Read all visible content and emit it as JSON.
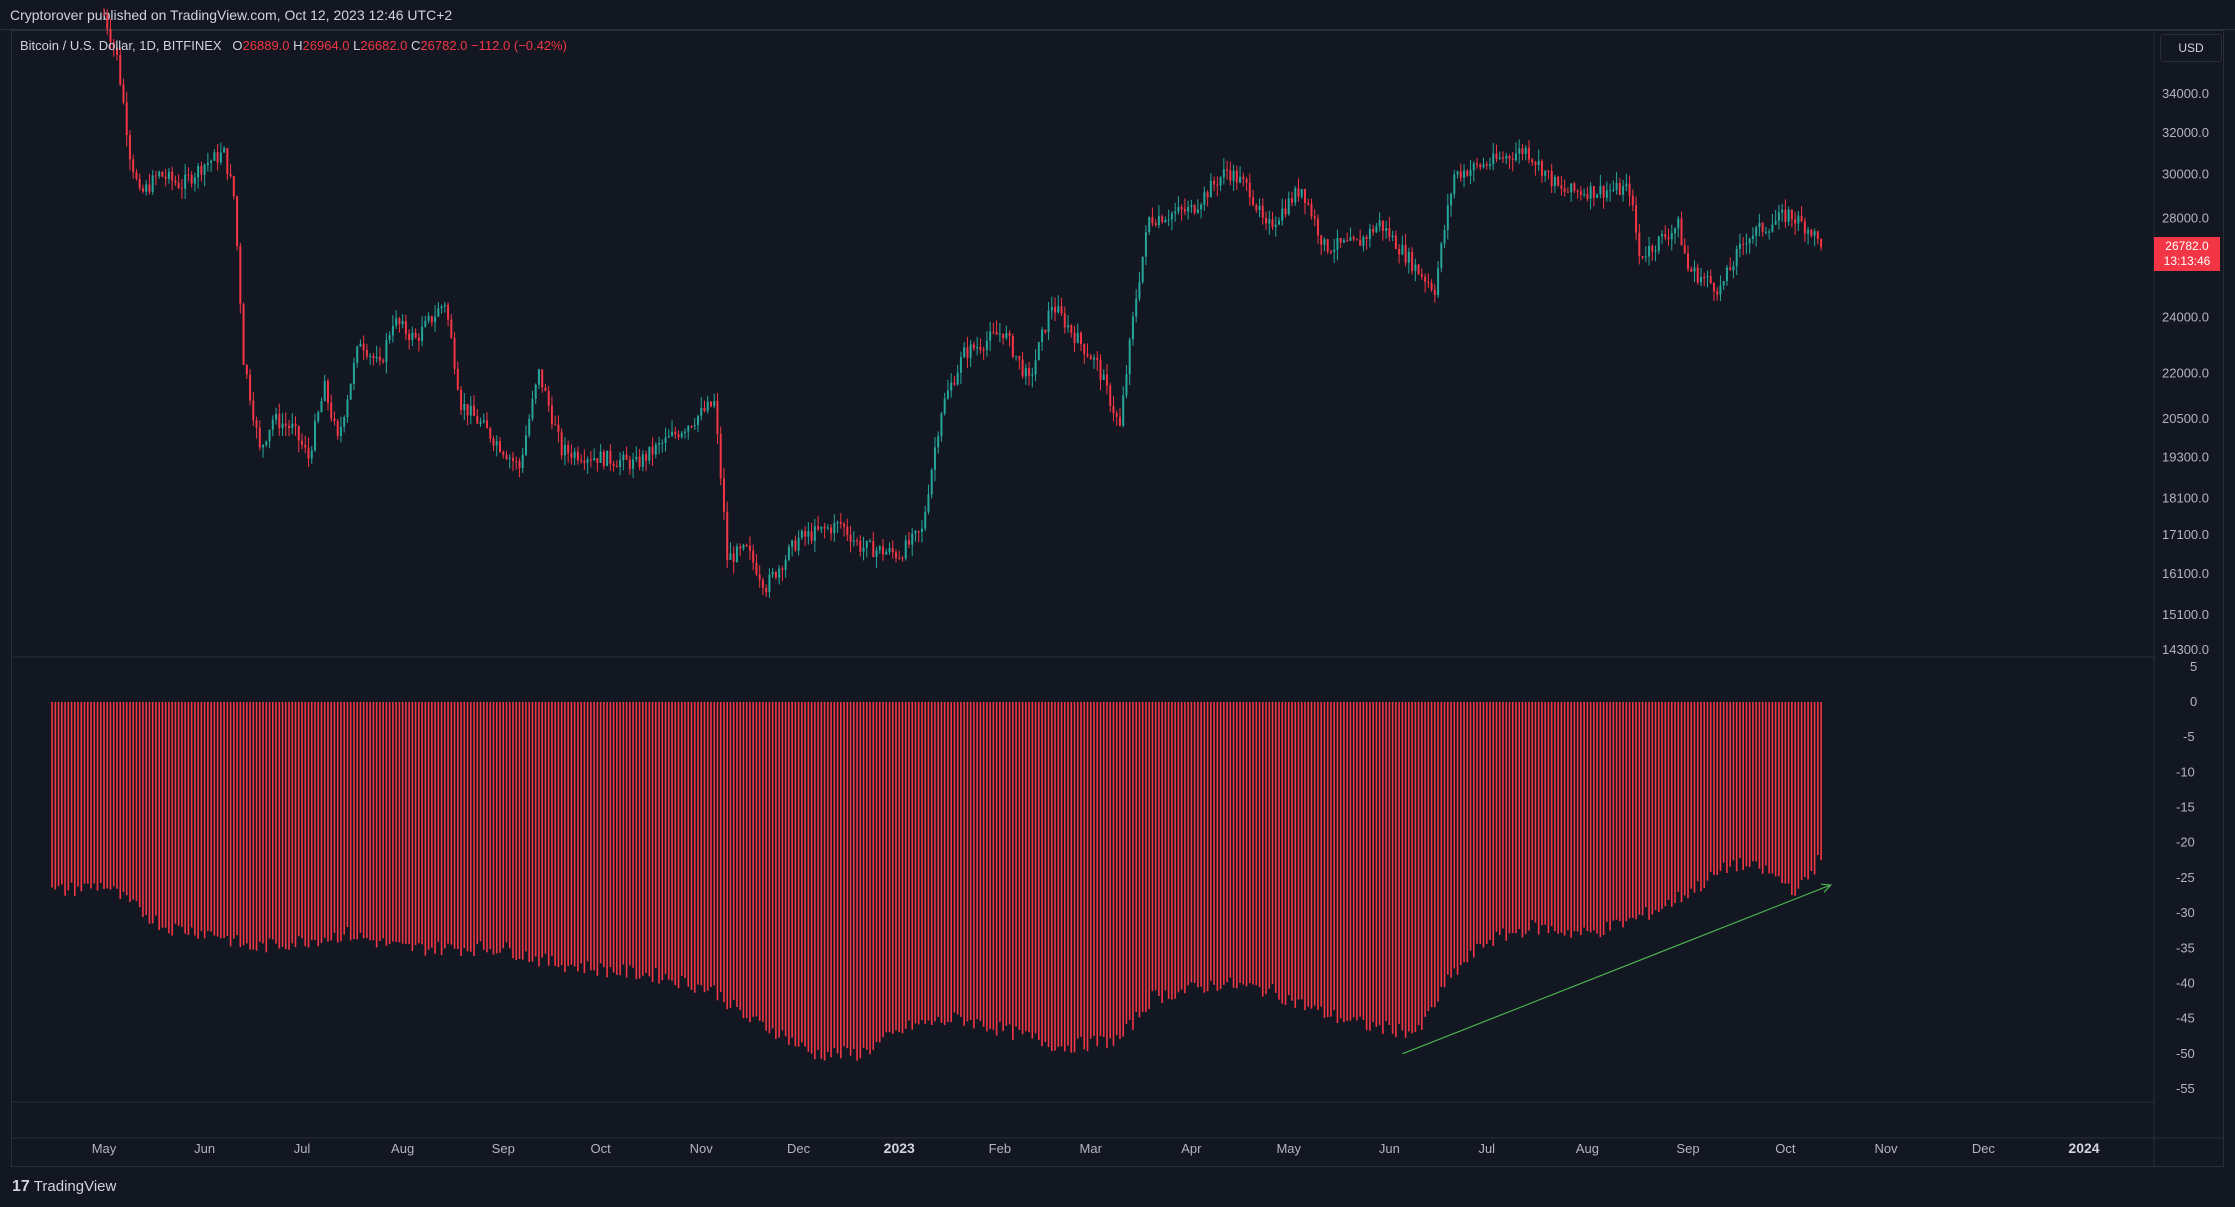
{
  "header": {
    "publisher": "Cryptorover published on TradingView.com, Oct 12, 2023 12:46 UTC+2"
  },
  "legend": {
    "symbol": "Bitcoin / U.S. Dollar, 1D, BITFINEX",
    "open_label": "O",
    "open": "26889.0",
    "high_label": "H",
    "high": "26964.0",
    "low_label": "L",
    "low": "26682.0",
    "close_label": "C",
    "close": "26782.0",
    "change": "−112.0 (−0.42%)"
  },
  "currency": "USD",
  "last_price": {
    "price": "26782.0",
    "countdown": "13:13:46"
  },
  "footer": {
    "brand": "TradingView"
  },
  "colors": {
    "background": "#131722",
    "up": "#26a69a",
    "down": "#f23645",
    "histogram": "#f23645",
    "trendline": "#4caf50",
    "grid": "#2a2e39"
  },
  "chart_data": [
    {
      "type": "candlestick",
      "scale": "log",
      "price_ticks": [
        34000,
        32000,
        30000,
        28000,
        24000,
        22000,
        20500,
        19300,
        18100,
        17100,
        16100,
        15100,
        14300
      ],
      "ylim": [
        14300,
        34000
      ],
      "x_axis_labels": [
        "May",
        "Jun",
        "Jul",
        "Aug",
        "Sep",
        "Oct",
        "Nov",
        "Dec",
        "2023",
        "Feb",
        "Mar",
        "Apr",
        "May",
        "Jun",
        "Jul",
        "Aug",
        "Sep",
        "Oct",
        "Nov",
        "Dec",
        "2024"
      ],
      "bold_labels": [
        "2023",
        "2024"
      ],
      "close_path": [
        {
          "x": "2022-05-01",
          "y": 38500
        },
        {
          "x": "2022-05-05",
          "y": 36000
        },
        {
          "x": "2022-05-09",
          "y": 31000
        },
        {
          "x": "2022-05-12",
          "y": 29000
        },
        {
          "x": "2022-05-18",
          "y": 30000
        },
        {
          "x": "2022-05-25",
          "y": 29500
        },
        {
          "x": "2022-06-01",
          "y": 30500
        },
        {
          "x": "2022-06-07",
          "y": 31000
        },
        {
          "x": "2022-06-10",
          "y": 29000
        },
        {
          "x": "2022-06-13",
          "y": 22500
        },
        {
          "x": "2022-06-18",
          "y": 19500
        },
        {
          "x": "2022-06-22",
          "y": 20500
        },
        {
          "x": "2022-06-28",
          "y": 20200
        },
        {
          "x": "2022-07-03",
          "y": 19300
        },
        {
          "x": "2022-07-08",
          "y": 21500
        },
        {
          "x": "2022-07-12",
          "y": 19800
        },
        {
          "x": "2022-07-19",
          "y": 23200
        },
        {
          "x": "2022-07-25",
          "y": 22200
        },
        {
          "x": "2022-07-29",
          "y": 23900
        },
        {
          "x": "2022-08-05",
          "y": 23200
        },
        {
          "x": "2022-08-14",
          "y": 24600
        },
        {
          "x": "2022-08-19",
          "y": 21000
        },
        {
          "x": "2022-08-28",
          "y": 20000
        },
        {
          "x": "2022-09-06",
          "y": 19000
        },
        {
          "x": "2022-09-12",
          "y": 22000
        },
        {
          "x": "2022-09-19",
          "y": 19500
        },
        {
          "x": "2022-10-01",
          "y": 19300
        },
        {
          "x": "2022-10-12",
          "y": 19100
        },
        {
          "x": "2022-10-25",
          "y": 20100
        },
        {
          "x": "2022-11-05",
          "y": 21000
        },
        {
          "x": "2022-11-09",
          "y": 16500
        },
        {
          "x": "2022-11-15",
          "y": 16700
        },
        {
          "x": "2022-11-21",
          "y": 15800
        },
        {
          "x": "2022-12-01",
          "y": 17000
        },
        {
          "x": "2022-12-14",
          "y": 17400
        },
        {
          "x": "2022-12-20",
          "y": 16800
        },
        {
          "x": "2023-01-01",
          "y": 16600
        },
        {
          "x": "2023-01-08",
          "y": 17200
        },
        {
          "x": "2023-01-14",
          "y": 20800
        },
        {
          "x": "2023-01-21",
          "y": 22700
        },
        {
          "x": "2023-02-02",
          "y": 23500
        },
        {
          "x": "2023-02-10",
          "y": 21700
        },
        {
          "x": "2023-02-17",
          "y": 24500
        },
        {
          "x": "2023-02-25",
          "y": 23200
        },
        {
          "x": "2023-03-03",
          "y": 22300
        },
        {
          "x": "2023-03-10",
          "y": 20200
        },
        {
          "x": "2023-03-15",
          "y": 24800
        },
        {
          "x": "2023-03-19",
          "y": 28000
        },
        {
          "x": "2023-04-01",
          "y": 28400
        },
        {
          "x": "2023-04-12",
          "y": 30200
        },
        {
          "x": "2023-04-19",
          "y": 29300
        },
        {
          "x": "2023-04-24",
          "y": 27500
        },
        {
          "x": "2023-05-05",
          "y": 29400
        },
        {
          "x": "2023-05-12",
          "y": 26800
        },
        {
          "x": "2023-05-22",
          "y": 26900
        },
        {
          "x": "2023-05-29",
          "y": 27800
        },
        {
          "x": "2023-06-10",
          "y": 25800
        },
        {
          "x": "2023-06-15",
          "y": 25100
        },
        {
          "x": "2023-06-21",
          "y": 30000
        },
        {
          "x": "2023-07-01",
          "y": 30500
        },
        {
          "x": "2023-07-13",
          "y": 31200
        },
        {
          "x": "2023-07-24",
          "y": 29200
        },
        {
          "x": "2023-08-14",
          "y": 29300
        },
        {
          "x": "2023-08-17",
          "y": 26400
        },
        {
          "x": "2023-08-29",
          "y": 27700
        },
        {
          "x": "2023-09-01",
          "y": 25900
        },
        {
          "x": "2023-09-11",
          "y": 25100
        },
        {
          "x": "2023-09-19",
          "y": 27200
        },
        {
          "x": "2023-10-02",
          "y": 28200
        },
        {
          "x": "2023-10-09",
          "y": 27500
        },
        {
          "x": "2023-10-12",
          "y": 26782
        }
      ]
    },
    {
      "type": "bar",
      "ylim": [
        -57,
        5
      ],
      "ticks": [
        5,
        0,
        -5,
        -10,
        -15,
        -20,
        -25,
        -30,
        -35,
        -40,
        -45,
        -50,
        -55
      ],
      "envelope": [
        {
          "x": "2022-04-15",
          "y": -27
        },
        {
          "x": "2022-05-01",
          "y": -26
        },
        {
          "x": "2022-05-10",
          "y": -29
        },
        {
          "x": "2022-05-20",
          "y": -32
        },
        {
          "x": "2022-06-05",
          "y": -33
        },
        {
          "x": "2022-06-15",
          "y": -35
        },
        {
          "x": "2022-07-01",
          "y": -34
        },
        {
          "x": "2022-07-15",
          "y": -33
        },
        {
          "x": "2022-08-01",
          "y": -35
        },
        {
          "x": "2022-08-15",
          "y": -35
        },
        {
          "x": "2022-09-01",
          "y": -35
        },
        {
          "x": "2022-09-15",
          "y": -37
        },
        {
          "x": "2022-10-01",
          "y": -38
        },
        {
          "x": "2022-10-20",
          "y": -39
        },
        {
          "x": "2022-11-05",
          "y": -41
        },
        {
          "x": "2022-11-15",
          "y": -45
        },
        {
          "x": "2022-11-25",
          "y": -47
        },
        {
          "x": "2022-12-05",
          "y": -50
        },
        {
          "x": "2022-12-20",
          "y": -50
        },
        {
          "x": "2023-01-05",
          "y": -46
        },
        {
          "x": "2023-01-20",
          "y": -45
        },
        {
          "x": "2023-02-05",
          "y": -47
        },
        {
          "x": "2023-02-20",
          "y": -49
        },
        {
          "x": "2023-03-10",
          "y": -48
        },
        {
          "x": "2023-03-20",
          "y": -42
        },
        {
          "x": "2023-04-10",
          "y": -40
        },
        {
          "x": "2023-04-25",
          "y": -41
        },
        {
          "x": "2023-05-10",
          "y": -44
        },
        {
          "x": "2023-05-25",
          "y": -46
        },
        {
          "x": "2023-06-10",
          "y": -47
        },
        {
          "x": "2023-06-20",
          "y": -39
        },
        {
          "x": "2023-07-01",
          "y": -34
        },
        {
          "x": "2023-07-15",
          "y": -32
        },
        {
          "x": "2023-08-01",
          "y": -33
        },
        {
          "x": "2023-08-15",
          "y": -31
        },
        {
          "x": "2023-08-25",
          "y": -29
        },
        {
          "x": "2023-09-05",
          "y": -26
        },
        {
          "x": "2023-09-15",
          "y": -23
        },
        {
          "x": "2023-09-25",
          "y": -24
        },
        {
          "x": "2023-10-05",
          "y": -27
        },
        {
          "x": "2023-10-12",
          "y": -22
        }
      ],
      "trendline": [
        {
          "x": "2023-06-05",
          "y": -50
        },
        {
          "x": "2023-10-15",
          "y": -26
        }
      ]
    }
  ]
}
